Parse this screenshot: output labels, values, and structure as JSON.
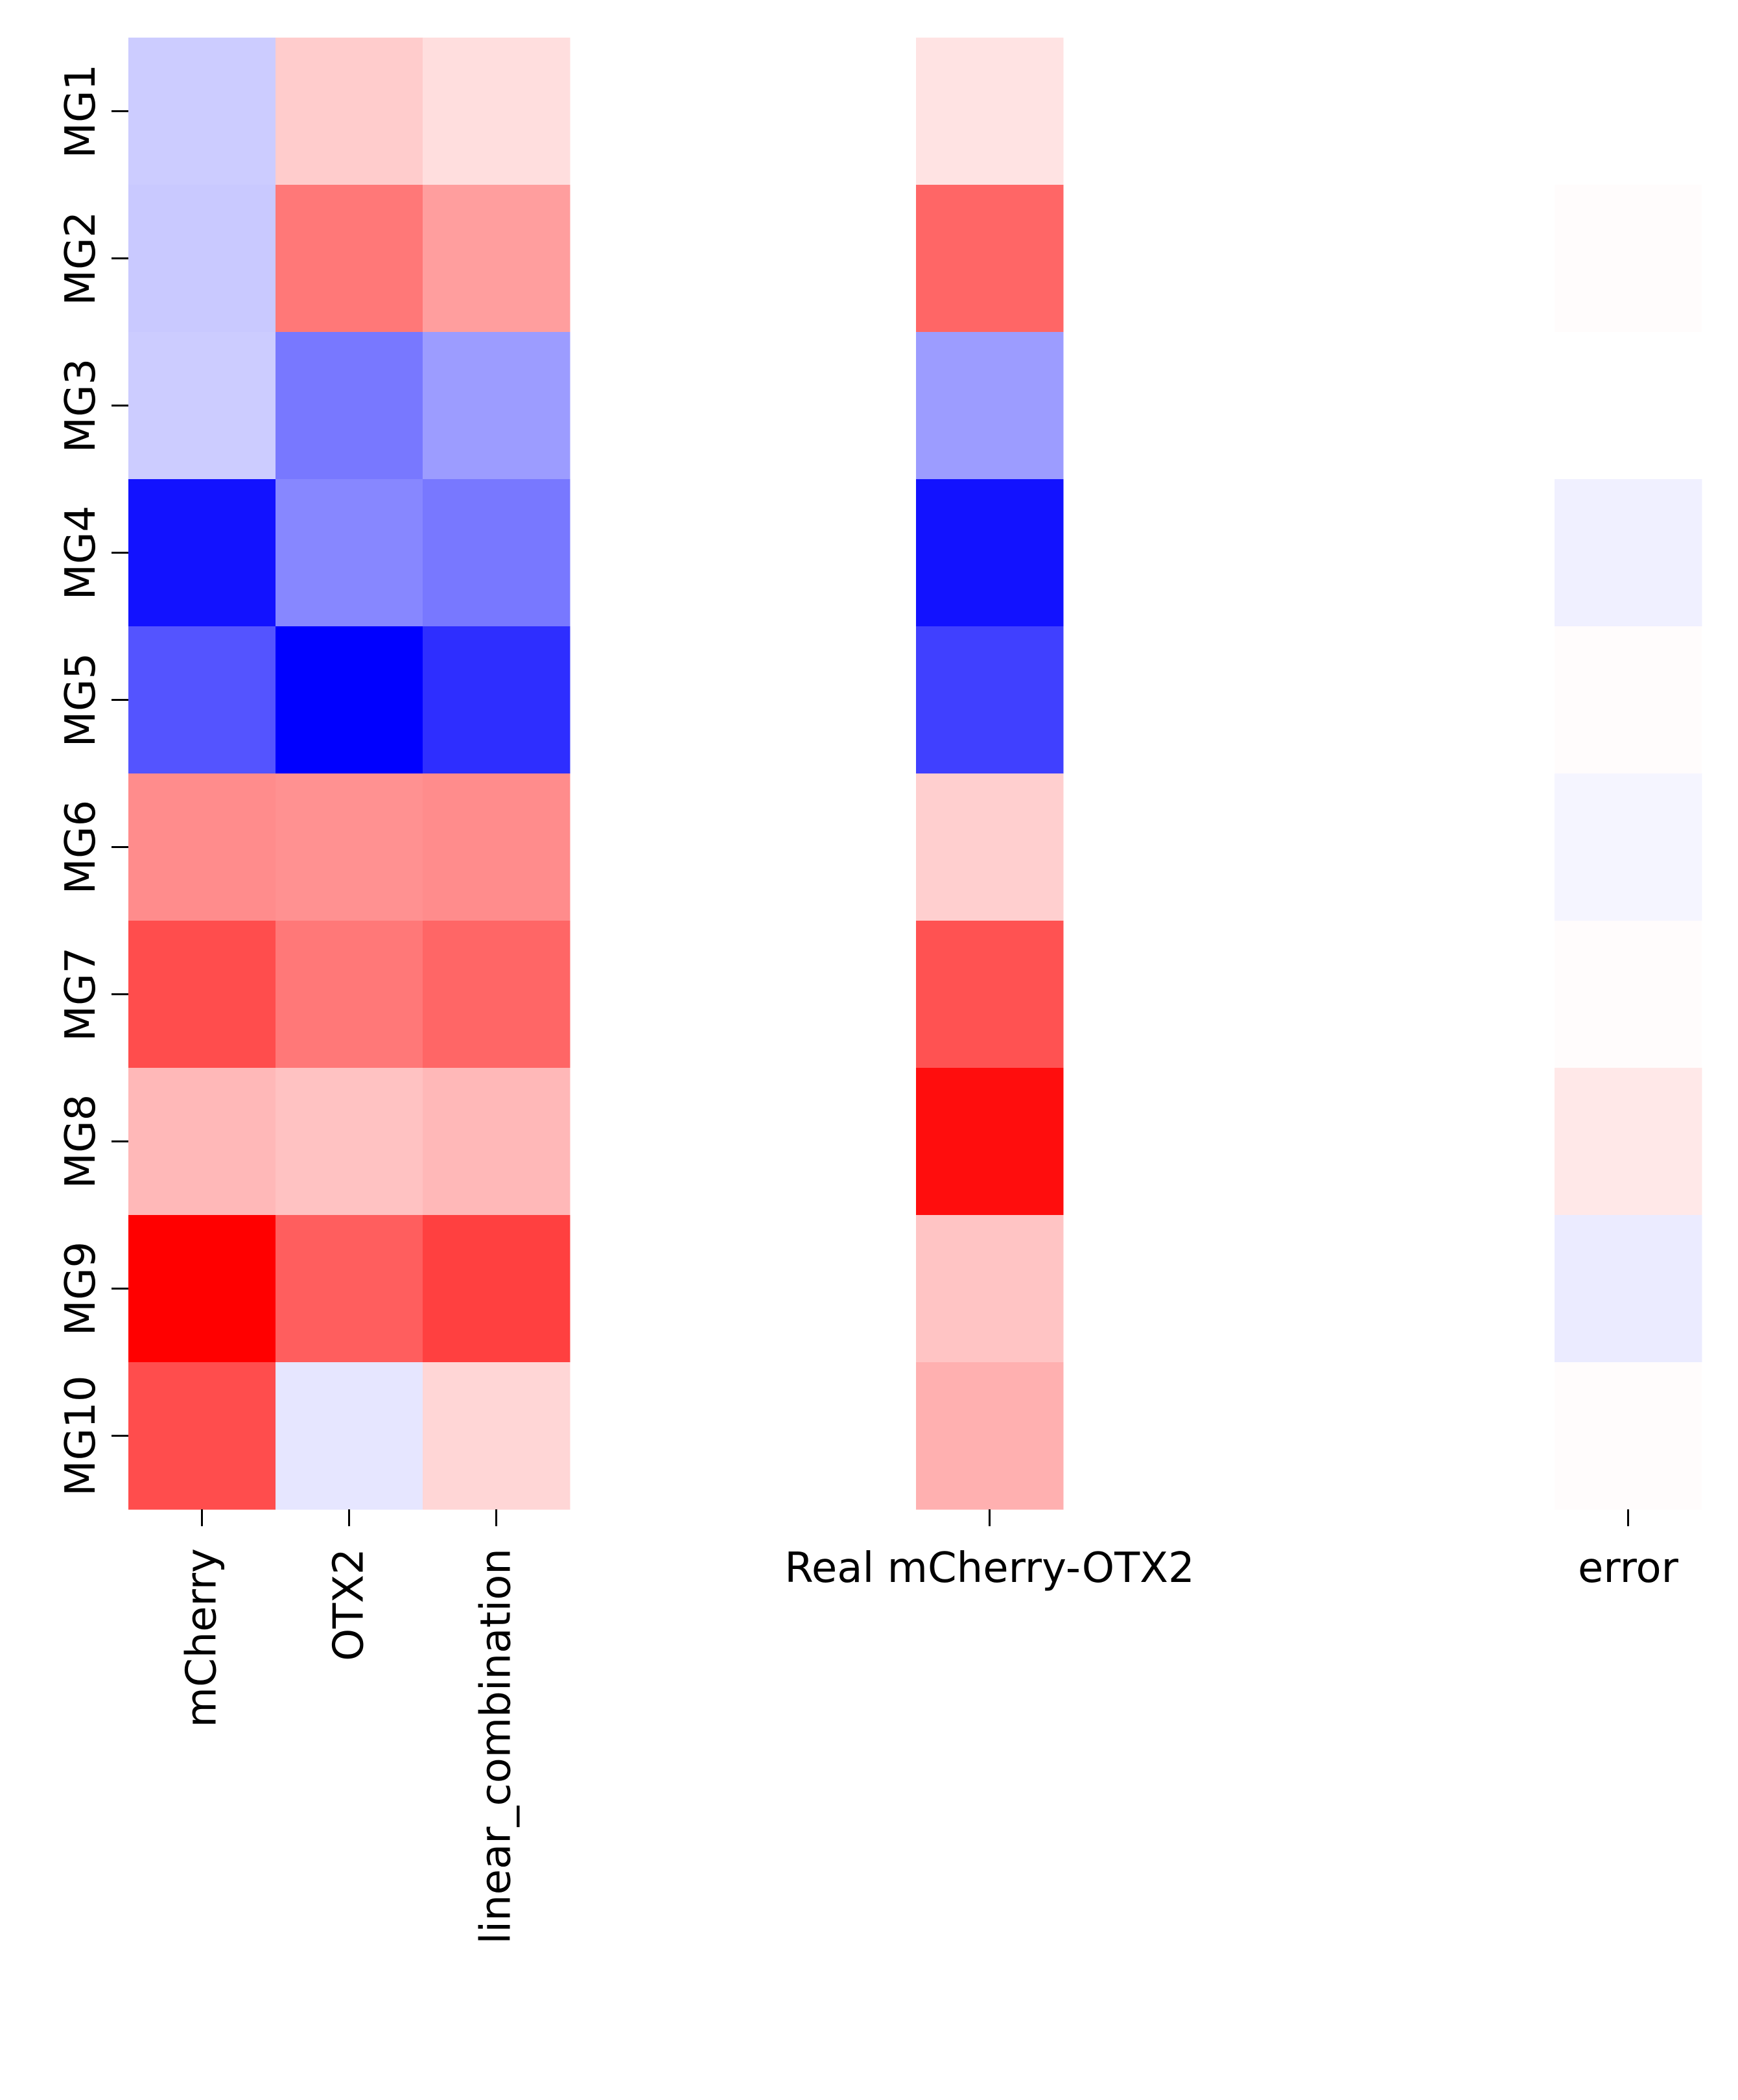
{
  "chart_data": {
    "type": "heatmap",
    "rows": [
      "MG1",
      "MG2",
      "MG3",
      "MG4",
      "MG5",
      "MG6",
      "MG7",
      "MG8",
      "MG9",
      "MG10"
    ],
    "colormap": "bwr",
    "color_min": "#0000ff",
    "color_mid": "#ffffff",
    "color_max": "#ff0000",
    "panels": [
      {
        "columns": [
          "mCherry",
          "OTX2",
          "linear_combination"
        ],
        "column_label_rotation": "vertical",
        "values": [
          [
            -0.2,
            0.2,
            0.13
          ],
          [
            -0.21,
            0.53,
            0.38
          ],
          [
            -0.2,
            -0.53,
            -0.39
          ],
          [
            -0.93,
            -0.47,
            -0.53
          ],
          [
            -0.67,
            -1.0,
            -0.82
          ],
          [
            0.45,
            0.43,
            0.45
          ],
          [
            0.7,
            0.53,
            0.6
          ],
          [
            0.28,
            0.24,
            0.28
          ],
          [
            1.0,
            0.63,
            0.75
          ],
          [
            0.7,
            -0.1,
            0.16
          ]
        ]
      },
      {
        "columns": [
          "Real mCherry-OTX2"
        ],
        "column_label_rotation": "horizontal",
        "values": [
          [
            0.11
          ],
          [
            0.6
          ],
          [
            -0.39
          ],
          [
            -0.93
          ],
          [
            -0.75
          ],
          [
            0.19
          ],
          [
            0.68
          ],
          [
            0.95
          ],
          [
            0.23
          ],
          [
            0.31
          ]
        ]
      },
      {
        "columns": [
          "error"
        ],
        "column_label_rotation": "horizontal",
        "values": [
          [
            0.0
          ],
          [
            0.01
          ],
          [
            0.0
          ],
          [
            -0.06
          ],
          [
            0.01
          ],
          [
            -0.04
          ],
          [
            0.01
          ],
          [
            0.09
          ],
          [
            -0.08
          ],
          [
            0.01
          ]
        ]
      }
    ],
    "colorbar": false,
    "grid": false
  }
}
